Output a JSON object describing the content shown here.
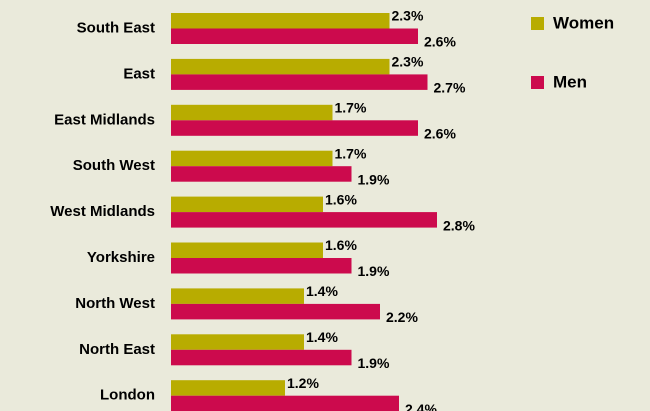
{
  "chart_data": {
    "type": "bar",
    "orientation": "horizontal",
    "categories": [
      "South East",
      "East",
      "East Midlands",
      "South West",
      "West Midlands",
      "Yorkshire",
      "North West",
      "North East",
      "London"
    ],
    "series": [
      {
        "name": "Women",
        "color": "#b8ac00",
        "values": [
          2.3,
          2.3,
          1.7,
          1.7,
          1.6,
          1.6,
          1.4,
          1.4,
          1.2
        ],
        "value_labels": [
          "2.3%",
          "2.3%",
          "1.7%",
          "1.7%",
          "1.6%",
          "1.6%",
          "1.4%",
          "1.4%",
          "1.2%"
        ]
      },
      {
        "name": "Men",
        "color": "#cc0a4d",
        "values": [
          2.6,
          2.7,
          2.6,
          1.9,
          2.8,
          1.9,
          2.2,
          1.9,
          2.4
        ],
        "value_labels": [
          "2.6%",
          "2.7%",
          "2.6%",
          "1.9%",
          "2.8%",
          "1.9%",
          "2.2%",
          "1.9%",
          "2.4%"
        ]
      }
    ],
    "legend": "right"
  }
}
